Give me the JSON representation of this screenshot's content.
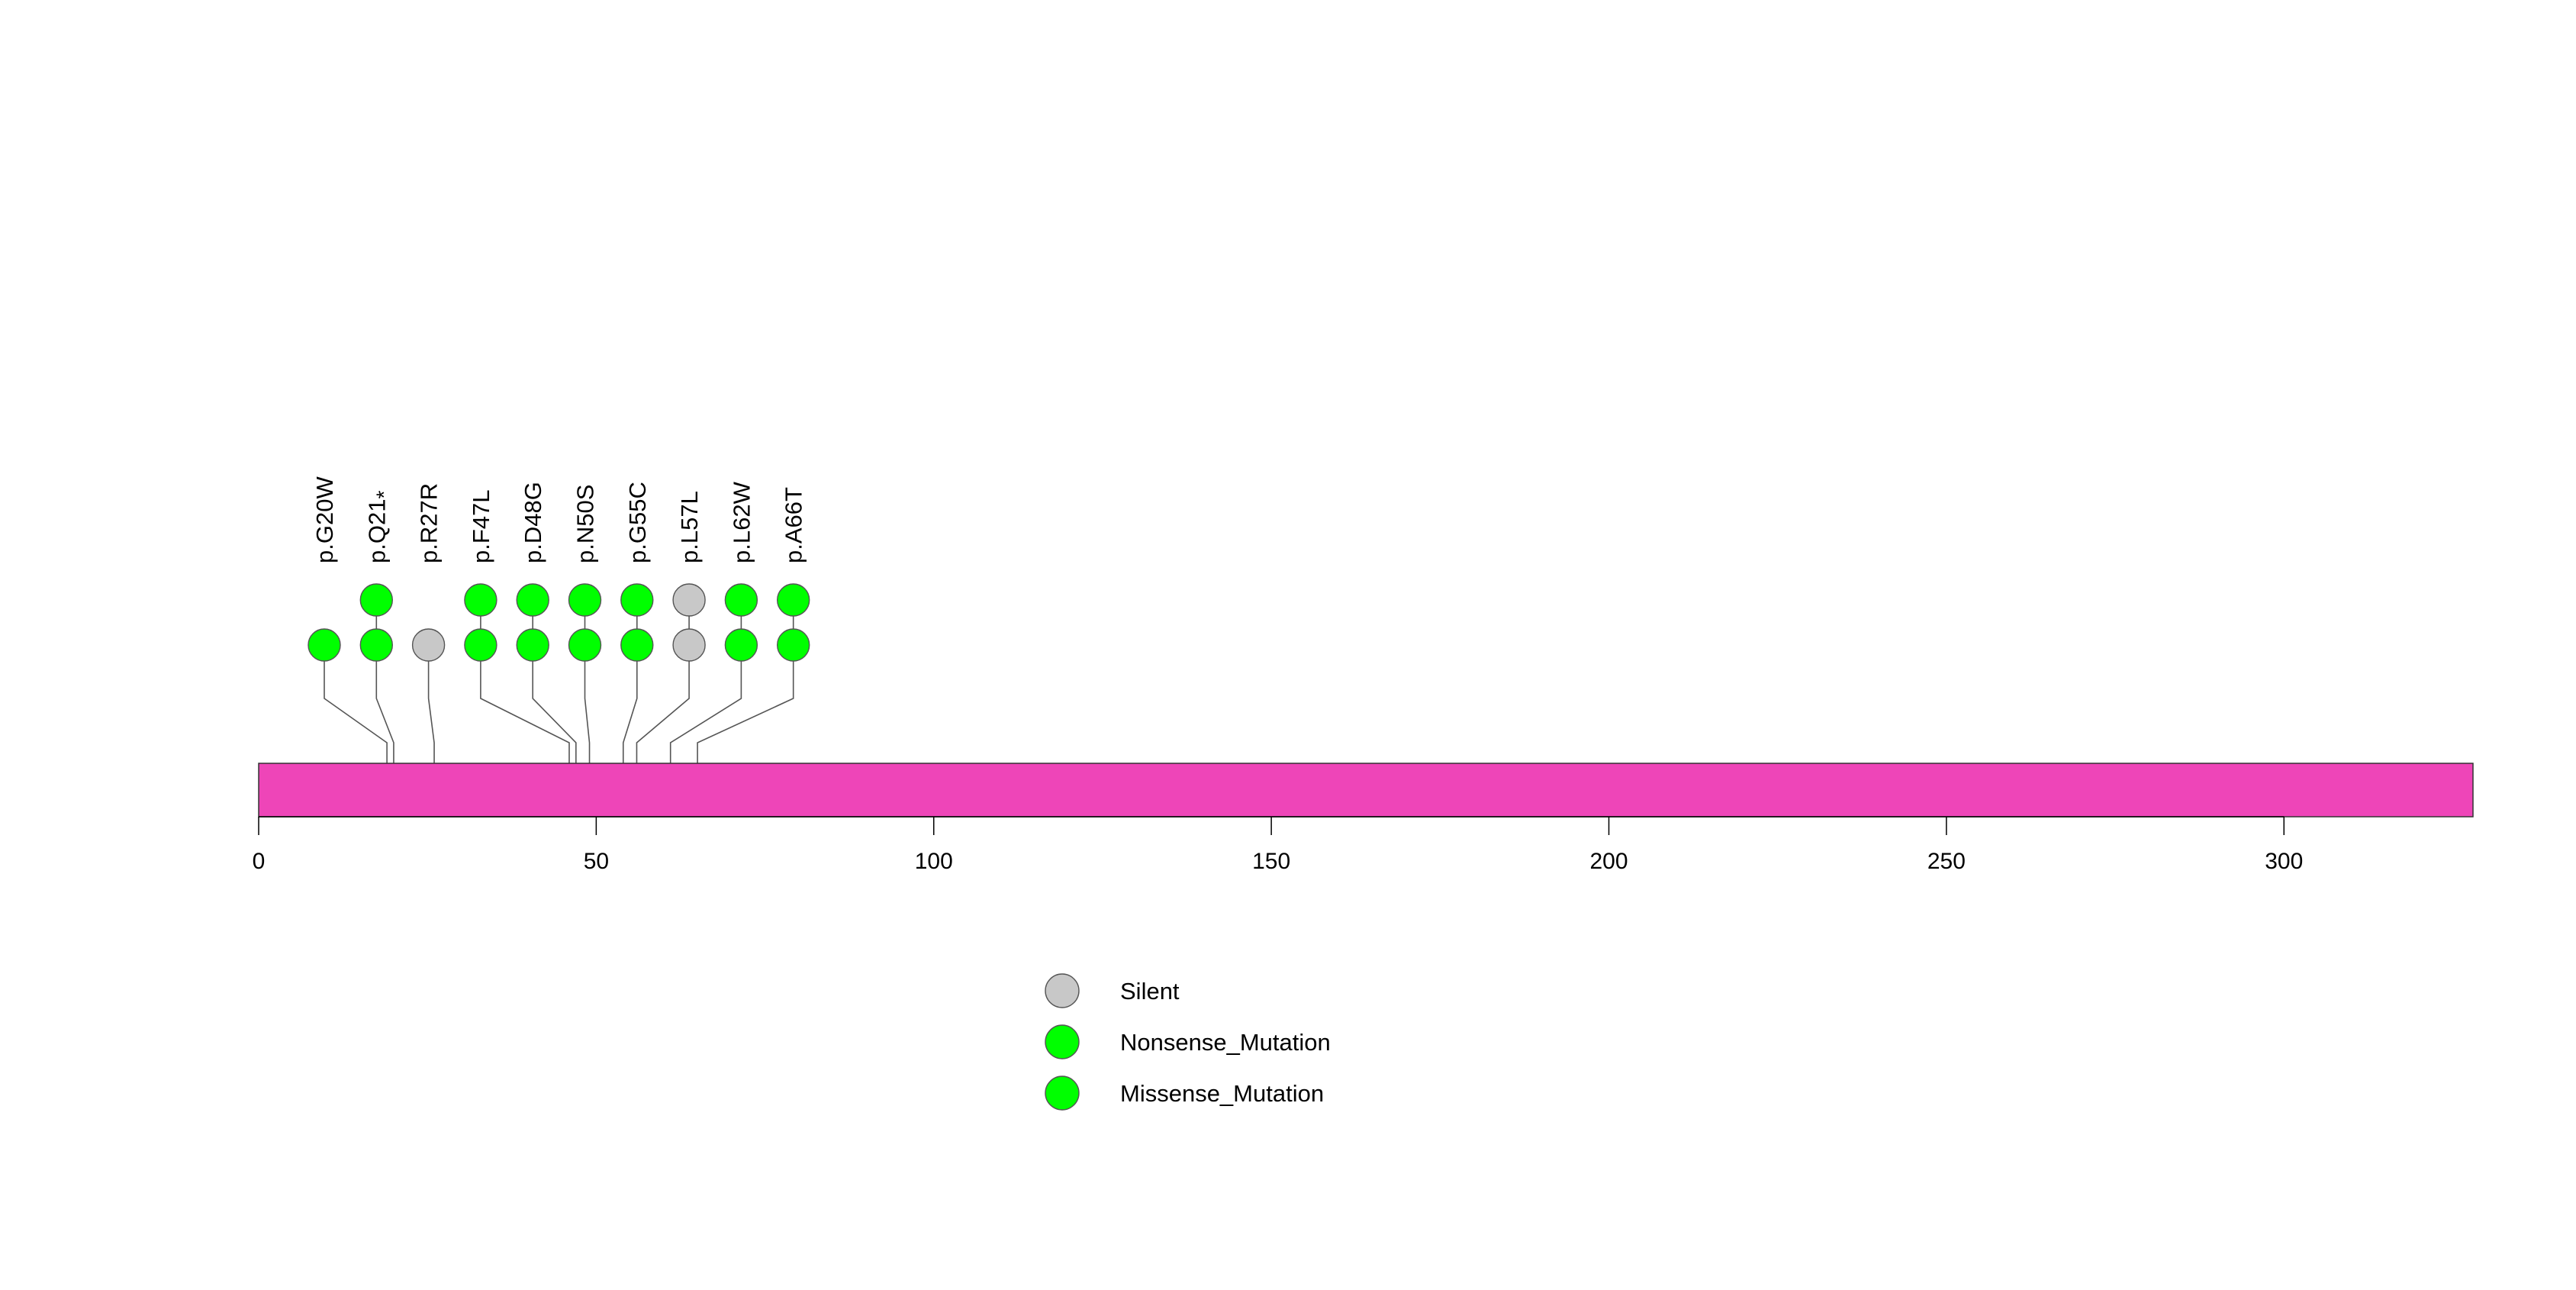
{
  "chart_data": {
    "type": "lollipop",
    "title": "",
    "xlabel": "",
    "ylabel": "",
    "xlim": [
      0,
      328
    ],
    "x_ticks": [
      0,
      50,
      100,
      150,
      200,
      250,
      300
    ],
    "x_tick_labels": [
      "0",
      "50",
      "100",
      "150",
      "200",
      "250",
      "300"
    ],
    "protein_length": 328,
    "domain_color": "#ee45b8",
    "mutation_types": [
      {
        "name": "Silent",
        "label": "Silent",
        "color": "#c8c8c8"
      },
      {
        "name": "Nonsense_Mutation",
        "label": "Nonsense_Mutation",
        "color": "#00ff00"
      },
      {
        "name": "Missense_Mutation",
        "label": "Missense_Mutation",
        "color": "#00ff00"
      }
    ],
    "mutations": [
      {
        "label": "p.G20W",
        "label_main": "p.G20W",
        "label_sub": "",
        "position": 19,
        "types": [
          "Missense_Mutation"
        ]
      },
      {
        "label": "p.Q21*",
        "label_main": "p.Q21",
        "label_sub": "*",
        "position": 20,
        "types": [
          "Nonsense_Mutation",
          "Nonsense_Mutation"
        ]
      },
      {
        "label": "p.R27R",
        "label_main": "p.R27R",
        "label_sub": "",
        "position": 26,
        "types": [
          "Silent"
        ]
      },
      {
        "label": "p.F47L",
        "label_main": "p.F47L",
        "label_sub": "",
        "position": 46,
        "types": [
          "Missense_Mutation",
          "Missense_Mutation"
        ]
      },
      {
        "label": "p.D48G",
        "label_main": "p.D48G",
        "label_sub": "",
        "position": 47,
        "types": [
          "Missense_Mutation",
          "Missense_Mutation"
        ]
      },
      {
        "label": "p.N50S",
        "label_main": "p.N50S",
        "label_sub": "",
        "position": 49,
        "types": [
          "Missense_Mutation",
          "Missense_Mutation"
        ]
      },
      {
        "label": "p.G55C",
        "label_main": "p.G55C",
        "label_sub": "",
        "position": 54,
        "types": [
          "Missense_Mutation",
          "Missense_Mutation"
        ]
      },
      {
        "label": "p.L57L",
        "label_main": "p.L57L",
        "label_sub": "",
        "position": 56,
        "types": [
          "Silent",
          "Silent"
        ]
      },
      {
        "label": "p.L62W",
        "label_main": "p.L62W",
        "label_sub": "",
        "position": 61,
        "types": [
          "Missense_Mutation",
          "Missense_Mutation"
        ]
      },
      {
        "label": "p.A66T",
        "label_main": "p.A66T",
        "label_sub": "",
        "position": 65,
        "types": [
          "Missense_Mutation",
          "Missense_Mutation"
        ]
      }
    ],
    "legend": {
      "placement": "bottom-center",
      "entries": [
        "Silent",
        "Nonsense_Mutation",
        "Missense_Mutation"
      ]
    }
  }
}
